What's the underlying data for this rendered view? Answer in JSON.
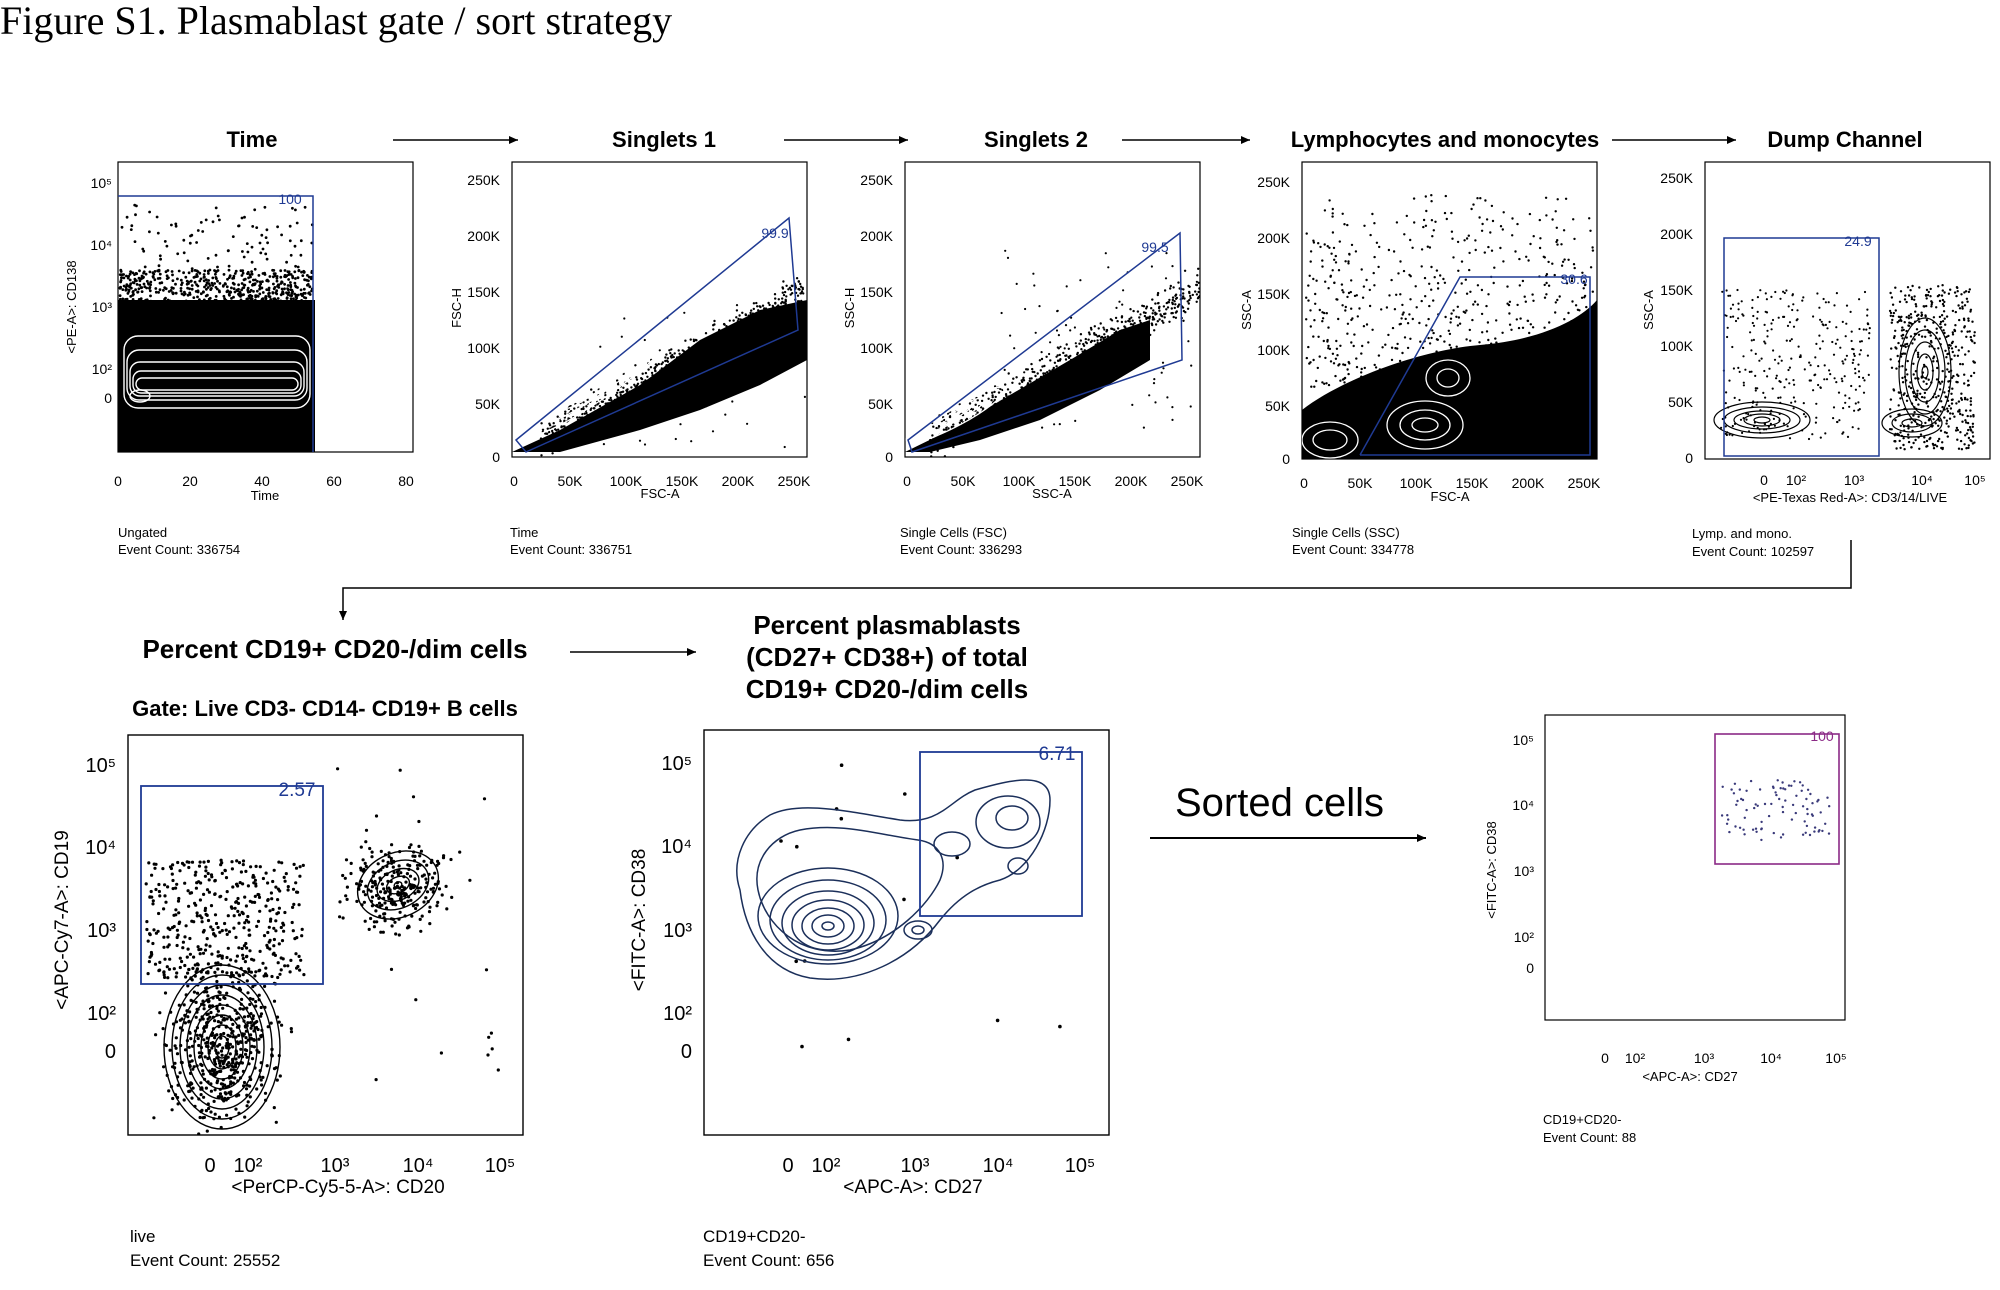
{
  "figure": {
    "title": "Figure S1. Plasmablast gate / sort strategy",
    "gate_color": "#1f3a93",
    "sorted_gate_color": "#8b2a86",
    "sorted_label": "Sorted cells"
  },
  "panels": [
    {
      "id": "time",
      "title": "Time",
      "plot_type": "contour+dots",
      "x_label": "Time",
      "y_label": "<PE-A>: CD138",
      "x_ticks": [
        "0",
        "20",
        "40",
        "60",
        "80"
      ],
      "y_ticks": [
        "10⁵",
        "10⁴",
        "10³",
        "10²",
        "0"
      ],
      "gate_value": "100",
      "footer_line1": "Ungated",
      "footer_line2": "Event Count: 336754"
    },
    {
      "id": "singlets1",
      "title": "Singlets 1",
      "plot_type": "dots+contour",
      "x_label": "FSC-A",
      "y_label": "FSC-H",
      "x_ticks": [
        "0",
        "50K",
        "100K",
        "150K",
        "200K",
        "250K"
      ],
      "y_ticks": [
        "250K",
        "200K",
        "150K",
        "100K",
        "50K",
        "0"
      ],
      "gate_value": "99.9",
      "footer_line1": "Time",
      "footer_line2": "Event Count: 336751"
    },
    {
      "id": "singlets2",
      "title": "Singlets 2",
      "plot_type": "dots+contour",
      "x_label": "SSC-A",
      "y_label": "SSC-H",
      "x_ticks": [
        "0",
        "50K",
        "100K",
        "150K",
        "200K",
        "250K"
      ],
      "y_ticks": [
        "250K",
        "200K",
        "150K",
        "100K",
        "50K",
        "0"
      ],
      "gate_value": "99.5",
      "footer_line1": "Single Cells (FSC)",
      "footer_line2": "Event Count: 336293"
    },
    {
      "id": "lymphmono",
      "title": "Lymphocytes and monocytes",
      "plot_type": "dots+contour",
      "x_label": "FSC-A",
      "y_label": "SSC-A",
      "x_ticks": [
        "0",
        "50K",
        "100K",
        "150K",
        "200K",
        "250K"
      ],
      "y_ticks": [
        "250K",
        "200K",
        "150K",
        "100K",
        "50K",
        "0"
      ],
      "gate_value": "30.6",
      "footer_line1": "Single Cells (SSC)",
      "footer_line2": "Event Count: 334778"
    },
    {
      "id": "dump",
      "title": "Dump Channel",
      "plot_type": "dots+contour",
      "x_label": "<PE-Texas Red-A>: CD3/14/LIVE",
      "y_label": "SSC-A",
      "x_ticks": [
        "0",
        "10²",
        "10³",
        "10⁴",
        "10⁵"
      ],
      "y_ticks": [
        "250K",
        "200K",
        "150K",
        "100K",
        "50K",
        "0"
      ],
      "gate_value": "24.9",
      "footer_line1": "Lymp. and mono.",
      "footer_line2": "Event Count: 102597"
    },
    {
      "id": "cd19cd20",
      "title": "Percent CD19+ CD20-/dim cells",
      "subtitle": "Gate: Live CD3- CD14-  CD19+ B cells",
      "plot_type": "dots+contour",
      "x_label": "<PerCP-Cy5-5-A>: CD20",
      "y_label": "<APC-Cy7-A>: CD19",
      "x_ticks": [
        "0",
        "10²",
        "10³",
        "10⁴",
        "10⁵"
      ],
      "y_ticks": [
        "10⁵",
        "10⁴",
        "10³",
        "10²",
        "0"
      ],
      "gate_value": "2.57",
      "footer_line1": "live",
      "footer_line2": "Event Count: 25552"
    },
    {
      "id": "plasmablasts",
      "title_lines": [
        "Percent plasmablasts",
        "(CD27+ CD38+) of total",
        "CD19+ CD20-/dim cells"
      ],
      "plot_type": "contour",
      "x_label": "<APC-A>: CD27",
      "y_label": "<FITC-A>: CD38",
      "x_ticks": [
        "0",
        "10²",
        "10³",
        "10⁴",
        "10⁵"
      ],
      "y_ticks": [
        "10⁵",
        "10⁴",
        "10³",
        "10²",
        "0"
      ],
      "gate_value": "6.71",
      "footer_line1": "CD19+CD20-",
      "footer_line2": "Event Count: 656"
    },
    {
      "id": "sorted",
      "plot_type": "dots",
      "x_label": "<APC-A>: CD27",
      "y_label": "<FITC-A>: CD38",
      "x_ticks": [
        "0",
        "10²",
        "10³",
        "10⁴",
        "10⁵"
      ],
      "y_ticks": [
        "10⁵",
        "10⁴",
        "10³",
        "10²",
        "0"
      ],
      "gate_value": "100",
      "footer_line1": "CD19+CD20-",
      "footer_line2": "Event Count: 88"
    }
  ]
}
